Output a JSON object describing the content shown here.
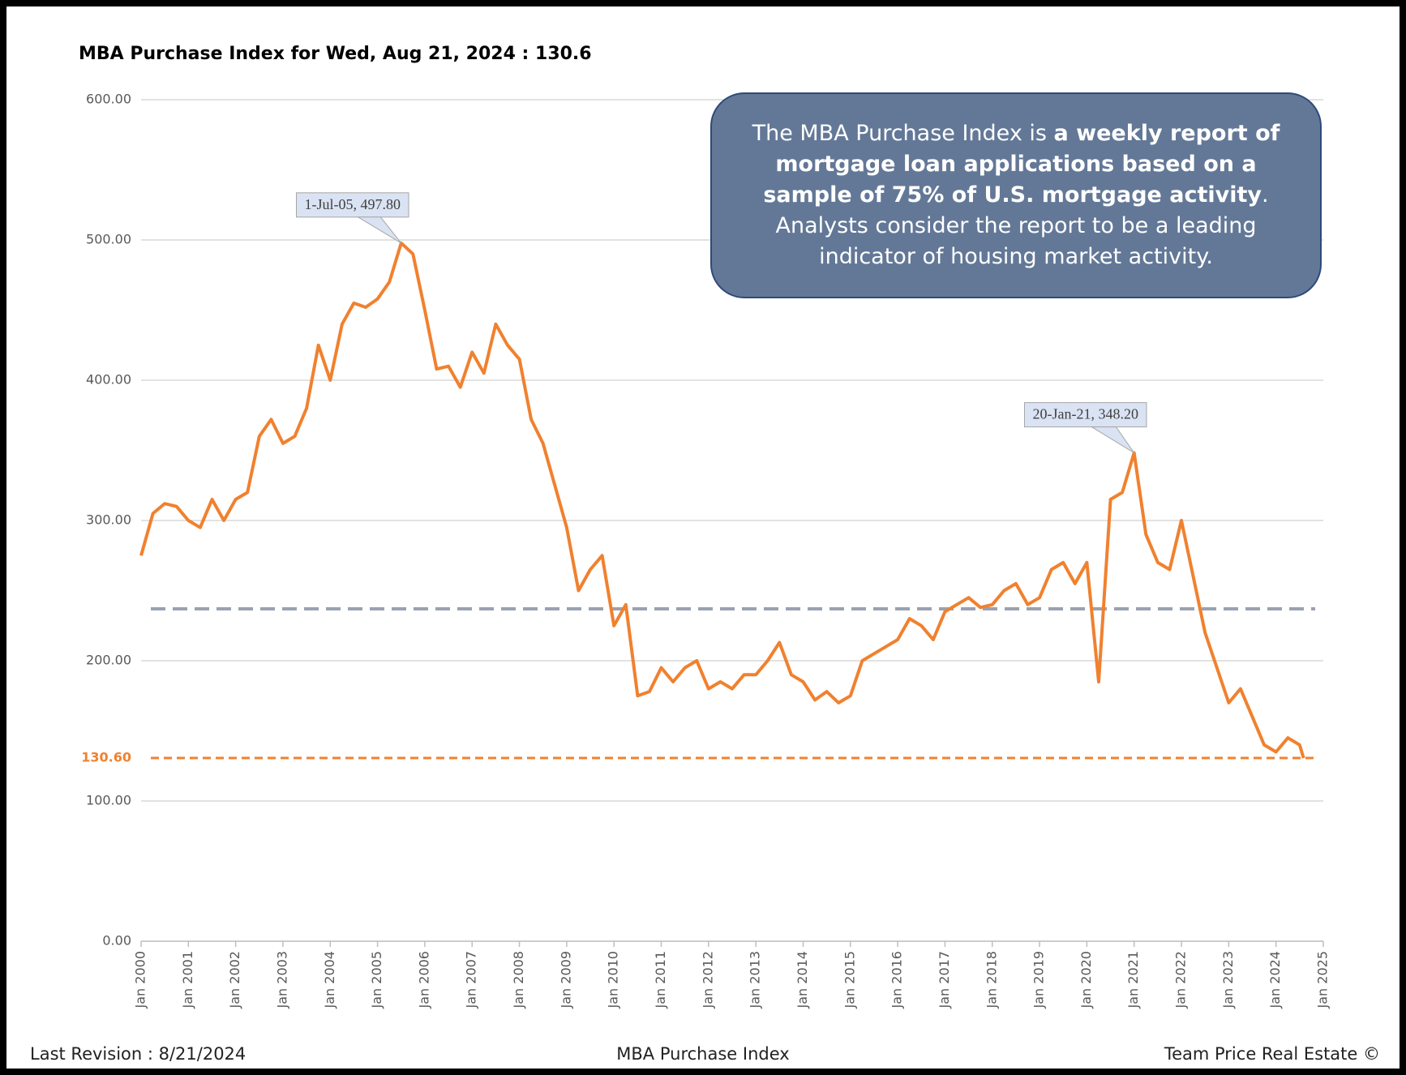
{
  "chart_data": {
    "type": "line",
    "title": "MBA Purchase Index for Wed, Aug 21, 2024 : 130.6",
    "x": [
      "2000-01",
      "2000-04",
      "2000-07",
      "2000-10",
      "2001-01",
      "2001-04",
      "2001-07",
      "2001-10",
      "2002-01",
      "2002-04",
      "2002-07",
      "2002-10",
      "2003-01",
      "2003-04",
      "2003-07",
      "2003-10",
      "2004-01",
      "2004-04",
      "2004-07",
      "2004-10",
      "2005-01",
      "2005-04",
      "2005-07",
      "2005-10",
      "2006-01",
      "2006-04",
      "2006-07",
      "2006-10",
      "2007-01",
      "2007-04",
      "2007-07",
      "2007-10",
      "2008-01",
      "2008-04",
      "2008-07",
      "2008-10",
      "2009-01",
      "2009-04",
      "2009-07",
      "2009-10",
      "2010-01",
      "2010-04",
      "2010-07",
      "2010-10",
      "2011-01",
      "2011-04",
      "2011-07",
      "2011-10",
      "2012-01",
      "2012-04",
      "2012-07",
      "2012-10",
      "2013-01",
      "2013-04",
      "2013-07",
      "2013-10",
      "2014-01",
      "2014-04",
      "2014-07",
      "2014-10",
      "2015-01",
      "2015-04",
      "2015-07",
      "2015-10",
      "2016-01",
      "2016-04",
      "2016-07",
      "2016-10",
      "2017-01",
      "2017-04",
      "2017-07",
      "2017-10",
      "2018-01",
      "2018-04",
      "2018-07",
      "2018-10",
      "2019-01",
      "2019-04",
      "2019-07",
      "2019-10",
      "2020-01",
      "2020-04",
      "2020-07",
      "2020-10",
      "2021-01",
      "2021-04",
      "2021-07",
      "2021-10",
      "2022-01",
      "2022-04",
      "2022-07",
      "2022-10",
      "2023-01",
      "2023-04",
      "2023-07",
      "2023-10",
      "2024-01",
      "2024-04",
      "2024-07",
      "2024-08"
    ],
    "series": [
      {
        "name": "MBA Purchase Index",
        "color": "#f0812f",
        "values": [
          275,
          305,
          312,
          310,
          300,
          295,
          315,
          300,
          315,
          320,
          360,
          372,
          355,
          360,
          380,
          425,
          400,
          440,
          455,
          452,
          458,
          470,
          497.8,
          490,
          450,
          408,
          410,
          395,
          420,
          405,
          440,
          425,
          415,
          372,
          355,
          325,
          295,
          250,
          265,
          275,
          225,
          240,
          175,
          178,
          195,
          185,
          195,
          200,
          180,
          185,
          180,
          190,
          190,
          200,
          213,
          190,
          185,
          172,
          178,
          170,
          175,
          200,
          205,
          210,
          215,
          230,
          225,
          215,
          235,
          240,
          245,
          238,
          240,
          250,
          255,
          240,
          245,
          265,
          270,
          255,
          270,
          185,
          315,
          320,
          348.2,
          290,
          270,
          265,
          300,
          260,
          220,
          195,
          170,
          180,
          160,
          140,
          135,
          145,
          140,
          130.6
        ]
      }
    ],
    "xlim": [
      "2000-01",
      "2025-01"
    ],
    "xticks": [
      {
        "value": "2000-01",
        "label": "Jan 2000"
      },
      {
        "value": "2001-01",
        "label": "Jan 2001"
      },
      {
        "value": "2002-01",
        "label": "Jan 2002"
      },
      {
        "value": "2003-01",
        "label": "Jan 2003"
      },
      {
        "value": "2004-01",
        "label": "Jan 2004"
      },
      {
        "value": "2005-01",
        "label": "Jan 2005"
      },
      {
        "value": "2006-01",
        "label": "Jan 2006"
      },
      {
        "value": "2007-01",
        "label": "Jan 2007"
      },
      {
        "value": "2008-01",
        "label": "Jan 2008"
      },
      {
        "value": "2009-01",
        "label": "Jan 2009"
      },
      {
        "value": "2010-01",
        "label": "Jan 2010"
      },
      {
        "value": "2011-01",
        "label": "Jan 2011"
      },
      {
        "value": "2012-01",
        "label": "Jan 2012"
      },
      {
        "value": "2013-01",
        "label": "Jan 2013"
      },
      {
        "value": "2014-01",
        "label": "Jan 2014"
      },
      {
        "value": "2015-01",
        "label": "Jan 2015"
      },
      {
        "value": "2016-01",
        "label": "Jan 2016"
      },
      {
        "value": "2017-01",
        "label": "Jan 2017"
      },
      {
        "value": "2018-01",
        "label": "Jan 2018"
      },
      {
        "value": "2019-01",
        "label": "Jan 2019"
      },
      {
        "value": "2020-01",
        "label": "Jan 2020"
      },
      {
        "value": "2021-01",
        "label": "Jan 2021"
      },
      {
        "value": "2022-01",
        "label": "Jan 2022"
      },
      {
        "value": "2023-01",
        "label": "Jan 2023"
      },
      {
        "value": "2024-01",
        "label": "Jan 2024"
      },
      {
        "value": "2025-01",
        "label": "Jan 2025"
      }
    ],
    "ylim": [
      0,
      600
    ],
    "yticks": [
      {
        "value": 0,
        "label": "0.00"
      },
      {
        "value": 100,
        "label": "100.00"
      },
      {
        "value": 200,
        "label": "200.00"
      },
      {
        "value": 300,
        "label": "300.00"
      },
      {
        "value": 400,
        "label": "400.00"
      },
      {
        "value": 500,
        "label": "500.00"
      },
      {
        "value": 600,
        "label": "600.00"
      }
    ],
    "grid": true,
    "reference_lines": [
      {
        "value": 237,
        "color": "#9aa2b0"
      },
      {
        "value": 130.6,
        "label": "130.60",
        "color": "#f0812f"
      }
    ],
    "annotations": [
      {
        "text": "1-Jul-05, 497.80",
        "x": "2005-07",
        "y": 497.8
      },
      {
        "text": "20-Jan-21, 348.20",
        "x": "2021-01",
        "y": 348.2
      }
    ],
    "info_box": [
      {
        "text": "The MBA Purchase Index is ",
        "bold": false
      },
      {
        "text": "a weekly report of mortgage loan applications based on a sample of 75% of U.S. mortgage activity",
        "bold": true
      },
      {
        "text": ". Analysts consider the report to be a leading indicator of housing market activity.",
        "bold": false
      }
    ],
    "footer": {
      "left": "Last Revision : 8/21/2024",
      "center": "MBA Purchase Index",
      "right": "Team Price Real Estate ©"
    }
  }
}
